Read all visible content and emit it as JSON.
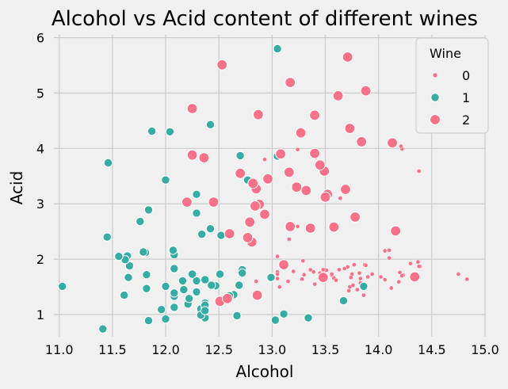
{
  "chart_data": {
    "type": "scatter",
    "title": "Alcohol vs Acid content of different wines",
    "xlabel": "Alcohol",
    "ylabel": "Acid",
    "xlim": [
      10.95,
      15.0
    ],
    "ylim": [
      0.6,
      6.05
    ],
    "xticks": [
      "11.0",
      "11.5",
      "12.0",
      "12.5",
      "13.0",
      "13.5",
      "14.0",
      "14.5",
      "15.0"
    ],
    "yticks": [
      "1",
      "2",
      "3",
      "4",
      "5",
      "6"
    ],
    "grid": true,
    "legend": {
      "title": "Wine",
      "placement": "top-right",
      "entries": [
        "0",
        "1",
        "2"
      ]
    },
    "colors": {
      "0": "#f77189",
      "1": "#36ada4",
      "2": "#f77189"
    },
    "series": [
      {
        "name": "0",
        "points": [
          [
            14.23,
            1.71
          ],
          [
            13.2,
            1.78
          ],
          [
            13.16,
            2.36
          ],
          [
            14.37,
            1.95
          ],
          [
            13.24,
            2.59
          ],
          [
            14.2,
            1.76
          ],
          [
            14.39,
            1.87
          ],
          [
            14.06,
            2.15
          ],
          [
            14.83,
            1.64
          ],
          [
            13.86,
            1.35
          ],
          [
            14.1,
            2.16
          ],
          [
            14.12,
            1.48
          ],
          [
            13.75,
            1.73
          ],
          [
            14.75,
            1.73
          ],
          [
            14.38,
            1.87
          ],
          [
            13.63,
            1.81
          ],
          [
            14.3,
            1.92
          ],
          [
            13.83,
            1.57
          ],
          [
            14.19,
            1.59
          ],
          [
            13.64,
            3.1
          ],
          [
            14.06,
            1.63
          ],
          [
            12.93,
            3.8
          ],
          [
            13.71,
            1.86
          ],
          [
            12.85,
            1.6
          ],
          [
            13.5,
            1.81
          ],
          [
            13.05,
            2.05
          ],
          [
            13.39,
            1.77
          ],
          [
            13.3,
            1.72
          ],
          [
            13.87,
            1.9
          ],
          [
            14.02,
            1.68
          ],
          [
            13.73,
            1.5
          ],
          [
            13.58,
            1.66
          ],
          [
            13.68,
            1.83
          ],
          [
            13.76,
            1.53
          ],
          [
            13.51,
            1.8
          ],
          [
            13.48,
            1.81
          ],
          [
            13.28,
            1.64
          ],
          [
            13.05,
            1.65
          ],
          [
            13.07,
            1.5
          ],
          [
            14.22,
            3.99
          ],
          [
            13.56,
            1.71
          ],
          [
            13.41,
            3.84
          ],
          [
            13.88,
            1.89
          ],
          [
            13.24,
            3.98
          ],
          [
            13.05,
            1.77
          ],
          [
            14.21,
            4.04
          ],
          [
            14.38,
            3.59
          ],
          [
            13.9,
            1.68
          ],
          [
            14.1,
            2.02
          ],
          [
            13.94,
            1.73
          ],
          [
            13.05,
            1.73
          ],
          [
            13.83,
            1.65
          ],
          [
            13.82,
            1.75
          ],
          [
            13.77,
            1.9
          ],
          [
            13.74,
            1.67
          ],
          [
            13.56,
            1.73
          ],
          [
            14.22,
            1.7
          ],
          [
            13.29,
            1.97
          ],
          [
            13.72,
            1.43
          ],
          [
            13.4,
            1.55
          ],
          [
            13.6,
            1.62
          ],
          [
            13.45,
            1.75
          ],
          [
            13.36,
            1.81
          ],
          [
            13.15,
            1.6
          ],
          [
            13.8,
            1.45
          ]
        ]
      },
      {
        "name": "1",
        "points": [
          [
            12.37,
            0.94
          ],
          [
            12.33,
            1.1
          ],
          [
            12.64,
            1.36
          ],
          [
            13.67,
            1.25
          ],
          [
            12.37,
            1.13
          ],
          [
            12.17,
            1.45
          ],
          [
            12.37,
            1.21
          ],
          [
            13.11,
            1.01
          ],
          [
            12.37,
            1.17
          ],
          [
            13.34,
            0.94
          ],
          [
            12.21,
            1.19
          ],
          [
            12.29,
            1.61
          ],
          [
            13.86,
            1.51
          ],
          [
            13.49,
            1.66
          ],
          [
            12.99,
            1.67
          ],
          [
            11.96,
            1.09
          ],
          [
            11.66,
            1.88
          ],
          [
            13.03,
            0.9
          ],
          [
            11.84,
            2.89
          ],
          [
            12.33,
            0.99
          ],
          [
            12.7,
            3.87
          ],
          [
            12.0,
            0.92
          ],
          [
            12.72,
            1.81
          ],
          [
            12.08,
            1.13
          ],
          [
            13.05,
            3.86
          ],
          [
            11.84,
            0.89
          ],
          [
            12.67,
            0.98
          ],
          [
            12.16,
            1.61
          ],
          [
            11.65,
            1.67
          ],
          [
            11.64,
            2.06
          ],
          [
            12.08,
            1.33
          ],
          [
            12.08,
            1.83
          ],
          [
            12.0,
            1.51
          ],
          [
            12.69,
            1.53
          ],
          [
            12.29,
            2.83
          ],
          [
            11.62,
            1.99
          ],
          [
            12.47,
            1.52
          ],
          [
            11.81,
            2.12
          ],
          [
            12.29,
            1.41
          ],
          [
            12.37,
            1.07
          ],
          [
            12.29,
            3.17
          ],
          [
            12.08,
            2.08
          ],
          [
            12.6,
            1.34
          ],
          [
            12.34,
            2.45
          ],
          [
            11.82,
            1.72
          ],
          [
            12.51,
            1.73
          ],
          [
            12.42,
            2.55
          ],
          [
            12.25,
            1.73
          ],
          [
            12.72,
            1.75
          ],
          [
            12.22,
            1.29
          ],
          [
            11.61,
            1.35
          ],
          [
            11.46,
            3.74
          ],
          [
            12.52,
            2.43
          ],
          [
            11.76,
            2.68
          ],
          [
            11.41,
            0.74
          ],
          [
            12.08,
            1.39
          ],
          [
            11.03,
            1.51
          ],
          [
            11.82,
            1.47
          ],
          [
            12.42,
            4.43
          ],
          [
            12.77,
            3.43
          ],
          [
            12.0,
            3.43
          ],
          [
            11.45,
            2.4
          ],
          [
            11.56,
            2.05
          ],
          [
            12.42,
            1.53
          ],
          [
            13.05,
            5.8
          ],
          [
            11.87,
            4.31
          ],
          [
            12.07,
            2.16
          ],
          [
            12.43,
            1.53
          ],
          [
            11.79,
            2.13
          ],
          [
            12.37,
            1.63
          ],
          [
            12.04,
            4.3
          ]
        ]
      },
      {
        "name": "2",
        "points": [
          [
            12.86,
            1.35
          ],
          [
            12.88,
            2.99
          ],
          [
            12.81,
            2.31
          ],
          [
            12.7,
            3.55
          ],
          [
            12.51,
            1.24
          ],
          [
            12.6,
            2.46
          ],
          [
            12.25,
            4.72
          ],
          [
            12.53,
            5.51
          ],
          [
            13.49,
            3.59
          ],
          [
            12.84,
            2.96
          ],
          [
            12.93,
            2.81
          ],
          [
            13.36,
            2.56
          ],
          [
            13.52,
            3.17
          ],
          [
            13.62,
            4.95
          ],
          [
            12.25,
            3.88
          ],
          [
            13.16,
            3.57
          ],
          [
            13.88,
            5.04
          ],
          [
            12.87,
            4.61
          ],
          [
            13.32,
            3.24
          ],
          [
            13.08,
            3.9
          ],
          [
            13.5,
            3.12
          ],
          [
            12.79,
            2.67
          ],
          [
            13.11,
            1.9
          ],
          [
            13.23,
            3.3
          ],
          [
            12.58,
            1.29
          ],
          [
            13.17,
            5.19
          ],
          [
            13.84,
            4.12
          ],
          [
            12.45,
            3.03
          ],
          [
            14.34,
            1.68
          ],
          [
            13.48,
            1.67
          ],
          [
            12.36,
            3.83
          ],
          [
            13.69,
            3.26
          ],
          [
            12.85,
            3.27
          ],
          [
            12.96,
            3.45
          ],
          [
            13.78,
            2.76
          ],
          [
            13.73,
            4.36
          ],
          [
            13.45,
            3.7
          ],
          [
            12.82,
            3.37
          ],
          [
            13.58,
            2.58
          ],
          [
            13.4,
            4.6
          ],
          [
            12.2,
            3.03
          ],
          [
            12.77,
            2.39
          ],
          [
            14.16,
            2.51
          ],
          [
            13.71,
            5.65
          ],
          [
            13.4,
            3.91
          ],
          [
            13.27,
            4.28
          ],
          [
            13.17,
            2.59
          ],
          [
            14.13,
            4.1
          ]
        ]
      }
    ]
  }
}
